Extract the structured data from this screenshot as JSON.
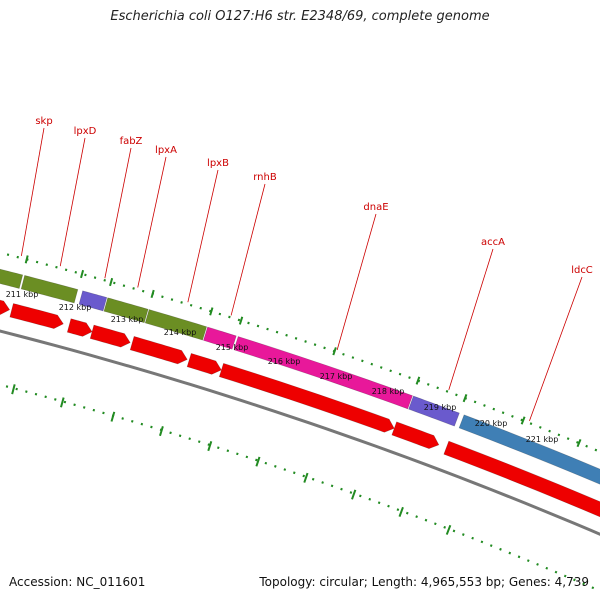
{
  "title": "Escherichia coli O127:H6 str. E2348/69, complete genome",
  "footer": {
    "accession": "Accession: NC_011601",
    "summary": "Topology: circular; Length: 4,965,553 bp; Genes: 4,739"
  },
  "colors": {
    "label_red": "#cc0000",
    "tick_green": "#228b22",
    "olive": "#6b8e23",
    "purple": "#6a5acd",
    "magenta": "#e8189a",
    "steelblue": "#3f7fb5",
    "cds_red": "#ee0000",
    "backbone": "#777777"
  },
  "genes": [
    {
      "label": "skp"
    },
    {
      "label": "lpxD"
    },
    {
      "label": "fabZ"
    },
    {
      "label": "lpxA"
    },
    {
      "label": "lpxB"
    },
    {
      "label": "rnhB"
    },
    {
      "label": "dnaE"
    },
    {
      "label": "accA"
    },
    {
      "label": "ldcC"
    }
  ],
  "kbp_labels": [
    "211 kbp",
    "212 kbp",
    "213 kbp",
    "214 kbp",
    "215 kbp",
    "216 kbp",
    "217 kbp",
    "218 kbp",
    "219 kbp",
    "220 kbp",
    "221 kbp"
  ]
}
